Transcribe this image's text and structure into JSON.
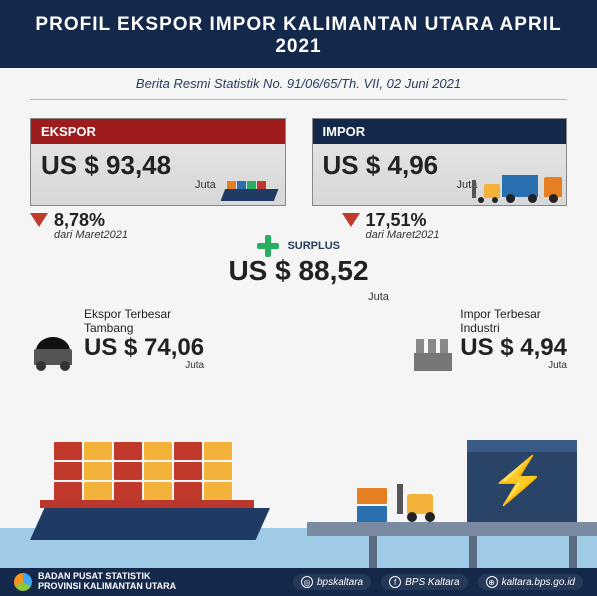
{
  "colors": {
    "header_bg": "#13284a",
    "red": "#9e1c1c",
    "arrow": "#c0392b",
    "green": "#27ae60",
    "container_palette": [
      "#e67e22",
      "#c0392b",
      "#2a6fb0",
      "#27ae60",
      "#f3b23a",
      "#7a8aa0"
    ]
  },
  "header": {
    "title": "PROFIL EKSPOR IMPOR KALIMANTAN UTARA APRIL 2021"
  },
  "subheader": "Berita Resmi Statistik No. 91/06/65/Th. VII, 02 Juni 2021",
  "ekspor": {
    "label": "EKSPOR",
    "value": "US $ 93,48",
    "unit": "Juta",
    "change_pct": "8,78%",
    "change_from": "dari Maret2021",
    "direction": "down"
  },
  "impor": {
    "label": "IMPOR",
    "value": "US $ 4,96",
    "unit": "Juta",
    "change_pct": "17,51%",
    "change_from": "dari Maret2021",
    "direction": "down"
  },
  "surplus": {
    "label": "SURPLUS",
    "value": "US $ 88,52",
    "unit": "Juta"
  },
  "biggest_export": {
    "label_line1": "Ekspor Terbesar",
    "label_line2": "Tambang",
    "value": "US $ 74,06",
    "unit": "Juta"
  },
  "biggest_import": {
    "label_line1": "Impor Terbesar",
    "label_line2": "Industri",
    "value": "US $ 4,94",
    "unit": "Juta"
  },
  "footer": {
    "org_line1": "BADAN PUSAT STATISTIK",
    "org_line2": "PROVINSI KALIMANTAN UTARA",
    "instagram": "bpskaltara",
    "facebook": "BPS Kaltara",
    "web": "kaltara.bps.go.id"
  }
}
